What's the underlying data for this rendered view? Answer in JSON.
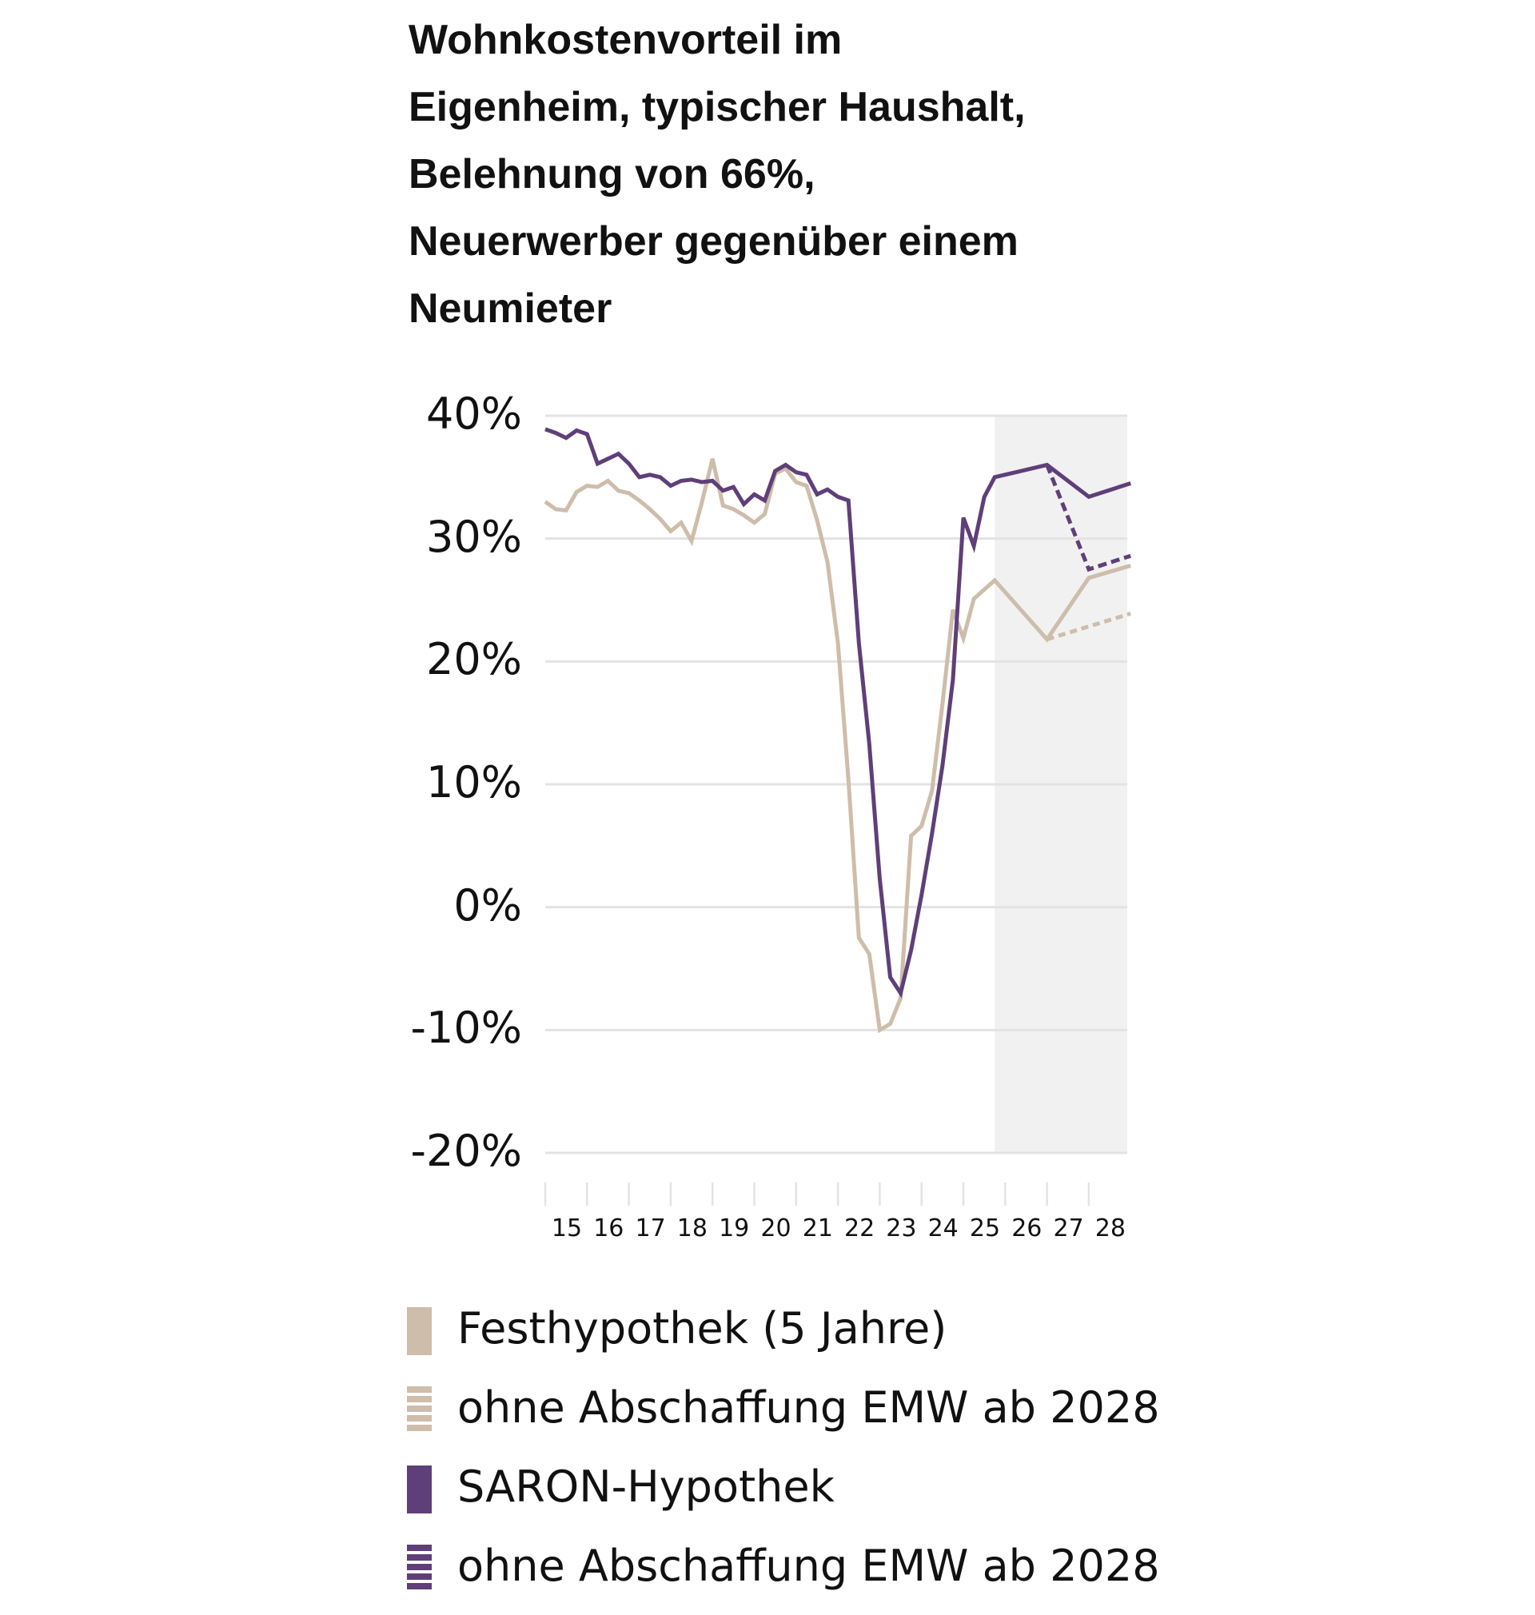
{
  "title": {
    "lines": [
      "Wohnkostenvorteil im",
      "Eigenheim, typischer Haushalt,",
      "Belehnung von 66%,",
      "Neuerwerber gegenüber einem",
      "Neumieter"
    ]
  },
  "colors": {
    "saron": "#5f3f79",
    "fest": "#cdbdaa",
    "forecast_shade": "#f1f1f1",
    "grid": "#e3e3e3"
  },
  "legend": {
    "items": [
      {
        "label": "Festhypothek (5 Jahre)",
        "color": "#cdbdaa",
        "style": "solid"
      },
      {
        "label": "ohne Abschaffung EMW ab 2028",
        "color": "#cdbdaa",
        "style": "dashed"
      },
      {
        "label": "SARON-Hypothek",
        "color": "#5f3f79",
        "style": "solid"
      },
      {
        "label": "ohne Abschaffung EMW ab 2028",
        "color": "#5f3f79",
        "style": "dashed"
      }
    ]
  },
  "chart_data": {
    "type": "line",
    "title": "Wohnkostenvorteil im Eigenheim, typischer Haushalt, Belehnung von 66%, Neuerwerber gegenüber einem Neumieter",
    "xlabel": "",
    "ylabel": "",
    "ylim": [
      -20,
      40
    ],
    "xlim": [
      2015,
      2029
    ],
    "y_ticks": [
      "40%",
      "30%",
      "20%",
      "10%",
      "0%",
      "-10%",
      "-20%"
    ],
    "y_tick_values": [
      40,
      30,
      20,
      10,
      0,
      -10,
      -20
    ],
    "x_tick_labels": [
      "15",
      "16",
      "17",
      "18",
      "19",
      "20",
      "21",
      "22",
      "23",
      "24",
      "25",
      "26",
      "27",
      "28"
    ],
    "grid": true,
    "forecast_region": {
      "from": 2025.75,
      "to": 2029
    },
    "legend_position": "bottom",
    "series": [
      {
        "name": "Festhypothek (5 Jahre)",
        "color": "#cdbdaa",
        "style": "solid",
        "x": [
          2015.0,
          2015.25,
          2015.5,
          2015.75,
          2016.0,
          2016.25,
          2016.5,
          2016.75,
          2017.0,
          2017.25,
          2017.5,
          2017.75,
          2018.0,
          2018.25,
          2018.5,
          2018.75,
          2019.0,
          2019.25,
          2019.5,
          2019.75,
          2020.0,
          2020.25,
          2020.5,
          2020.75,
          2021.0,
          2021.25,
          2021.5,
          2021.75,
          2022.0,
          2022.25,
          2022.5,
          2022.75,
          2023.0,
          2023.25,
          2023.5,
          2023.75,
          2024.0,
          2024.25,
          2024.5,
          2024.75,
          2025.0,
          2025.25,
          2025.75,
          2027.0,
          2028.0,
          2029.0
        ],
        "values": [
          33.0,
          32.4,
          32.3,
          33.8,
          34.3,
          34.2,
          34.7,
          33.9,
          33.7,
          33.1,
          32.4,
          31.6,
          30.6,
          31.3,
          29.8,
          33.0,
          36.5,
          32.7,
          32.4,
          31.9,
          31.3,
          32.0,
          35.3,
          35.7,
          34.6,
          34.3,
          31.5,
          28.1,
          21.5,
          10.4,
          -2.5,
          -3.8,
          -10.0,
          -9.5,
          -7.4,
          5.8,
          6.6,
          9.5,
          16.5,
          24.2,
          21.9,
          25.1,
          26.6,
          21.8,
          26.8,
          27.8
        ]
      },
      {
        "name": "ohne Abschaffung EMW ab 2028 (Festhypothek)",
        "color": "#cdbdaa",
        "style": "dashed",
        "x": [
          2027.0,
          2029.0
        ],
        "values": [
          21.8,
          23.9
        ]
      },
      {
        "name": "SARON-Hypothek",
        "color": "#5f3f79",
        "style": "solid",
        "x": [
          2015.0,
          2015.25,
          2015.5,
          2015.75,
          2016.0,
          2016.25,
          2016.5,
          2016.75,
          2017.0,
          2017.25,
          2017.5,
          2017.75,
          2018.0,
          2018.25,
          2018.5,
          2018.75,
          2019.0,
          2019.25,
          2019.5,
          2019.75,
          2020.0,
          2020.25,
          2020.5,
          2020.75,
          2021.0,
          2021.25,
          2021.5,
          2021.75,
          2022.0,
          2022.25,
          2022.5,
          2022.75,
          2023.0,
          2023.25,
          2023.5,
          2023.75,
          2024.0,
          2024.25,
          2024.5,
          2024.75,
          2025.0,
          2025.25,
          2025.5,
          2025.75,
          2027.0,
          2028.0,
          2029.0
        ],
        "values": [
          38.9,
          38.6,
          38.2,
          38.8,
          38.5,
          36.1,
          36.5,
          36.9,
          36.1,
          35.0,
          35.2,
          35.0,
          34.3,
          34.7,
          34.8,
          34.6,
          34.7,
          33.9,
          34.2,
          32.8,
          33.6,
          33.1,
          35.5,
          36.0,
          35.4,
          35.2,
          33.6,
          34.0,
          33.4,
          33.1,
          21.5,
          13.3,
          2.3,
          -5.7,
          -7.0,
          -3.5,
          1.0,
          6.0,
          11.5,
          18.5,
          31.7,
          29.4,
          33.4,
          35.0,
          36.0,
          33.4,
          34.5
        ]
      },
      {
        "name": "ohne Abschaffung EMW ab 2028 (SARON-Hypothek)",
        "color": "#5f3f79",
        "style": "dashed",
        "x": [
          2027.0,
          2028.0,
          2029.0
        ],
        "values": [
          36.0,
          27.5,
          28.6
        ]
      }
    ]
  }
}
